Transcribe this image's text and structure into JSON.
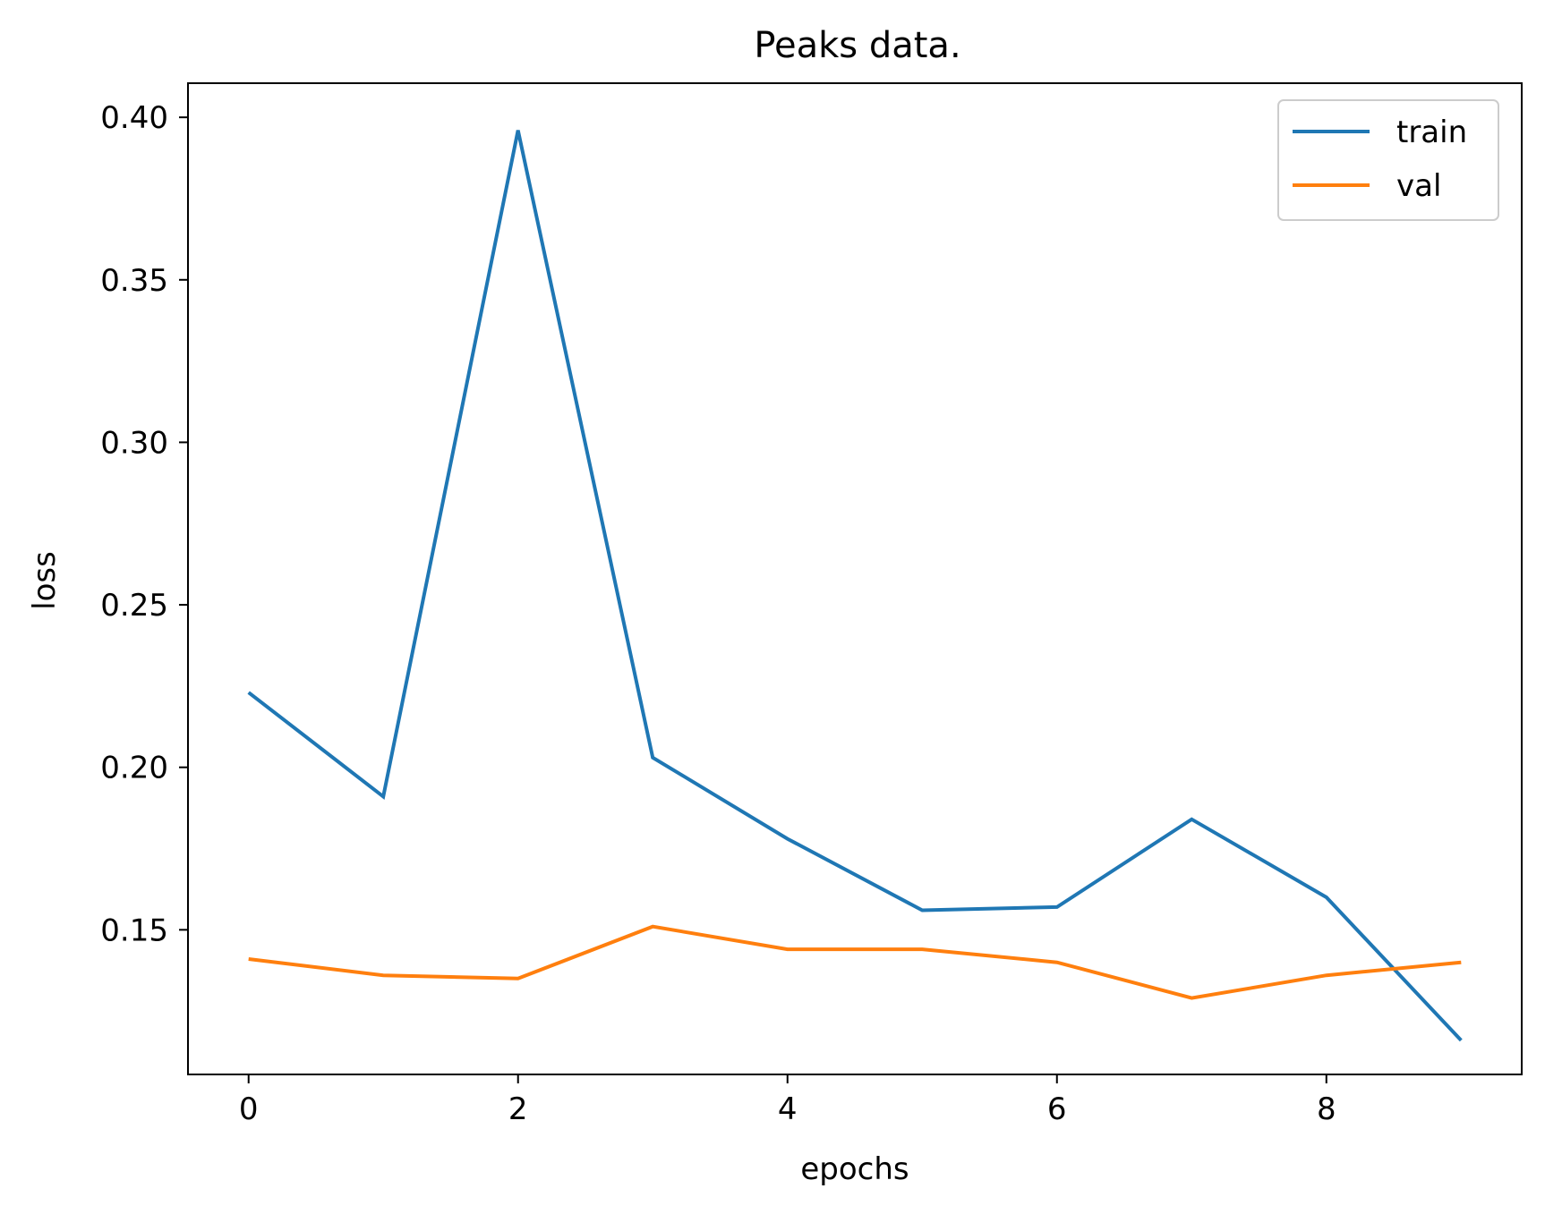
{
  "chart_data": {
    "type": "line",
    "title": "Peaks data.",
    "xlabel": "epochs",
    "ylabel": "loss",
    "x": [
      0,
      1,
      2,
      3,
      4,
      5,
      6,
      7,
      8,
      9
    ],
    "series": [
      {
        "name": "train",
        "color": "#1f77b4",
        "values": [
          0.223,
          0.191,
          0.396,
          0.203,
          0.178,
          0.156,
          0.157,
          0.184,
          0.16,
          0.116
        ]
      },
      {
        "name": "val",
        "color": "#ff7f0e",
        "values": [
          0.141,
          0.136,
          0.135,
          0.151,
          0.144,
          0.144,
          0.14,
          0.129,
          0.136,
          0.14
        ]
      }
    ],
    "xlim": [
      -0.45,
      9.45
    ],
    "ylim": [
      0.1055,
      0.4105
    ],
    "xticks": [
      0,
      2,
      4,
      6,
      8
    ],
    "xtick_labels": [
      "0",
      "2",
      "4",
      "6",
      "8"
    ],
    "yticks": [
      0.15,
      0.2,
      0.25,
      0.3,
      0.35,
      0.4
    ],
    "ytick_labels": [
      "0.15",
      "0.20",
      "0.25",
      "0.30",
      "0.35",
      "0.40"
    ],
    "grid": false,
    "legend_position": "top-right"
  }
}
